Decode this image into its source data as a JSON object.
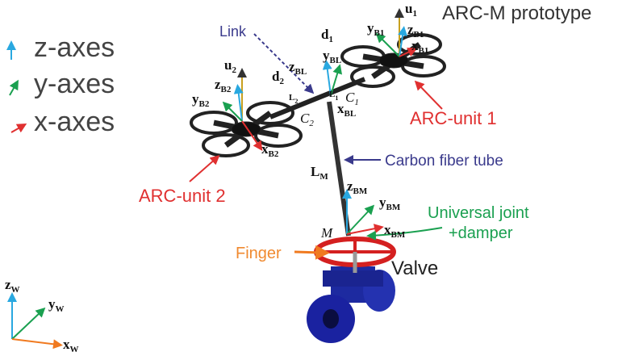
{
  "title": "ARC-M prototype",
  "legend": {
    "items": [
      {
        "label": "z-axes"
      },
      {
        "label": "y-axes"
      },
      {
        "label": "x-axes"
      }
    ]
  },
  "annotations": {
    "link": "Link",
    "unit1": "ARC-unit 1",
    "unit2": "ARC-unit 2",
    "tube": "Carbon fiber tube",
    "joint_line1": "Universal joint",
    "joint_line2": "+damper",
    "finger": "Finger",
    "valve": "Valve"
  },
  "math_labels": [
    {
      "base": "u",
      "sub": "1"
    },
    {
      "base": "z",
      "sub": "B1"
    },
    {
      "base": "y",
      "sub": "B1"
    },
    {
      "base": "x",
      "sub": "B1"
    },
    {
      "base": "d",
      "sub": "1"
    },
    {
      "base": "y",
      "sub": "BL"
    },
    {
      "base": "z",
      "sub": "BL"
    },
    {
      "base": "x",
      "sub": "BL"
    },
    {
      "base": "L",
      "sub": "1"
    },
    {
      "base": "C",
      "sub": "1"
    },
    {
      "base": "u",
      "sub": "2"
    },
    {
      "base": "z",
      "sub": "B2"
    },
    {
      "base": "y",
      "sub": "B2"
    },
    {
      "base": "d",
      "sub": "2"
    },
    {
      "base": "L",
      "sub": "2"
    },
    {
      "base": "C",
      "sub": "2"
    },
    {
      "base": "x",
      "sub": "B2"
    },
    {
      "base": "L",
      "sub": "M"
    },
    {
      "base": "z",
      "sub": "BM"
    },
    {
      "base": "y",
      "sub": "BM"
    },
    {
      "base": "x",
      "sub": "BM"
    },
    {
      "base": "M"
    },
    {
      "base": "z",
      "sub": "W"
    },
    {
      "base": "y",
      "sub": "W"
    },
    {
      "base": "x",
      "sub": "W"
    }
  ]
}
